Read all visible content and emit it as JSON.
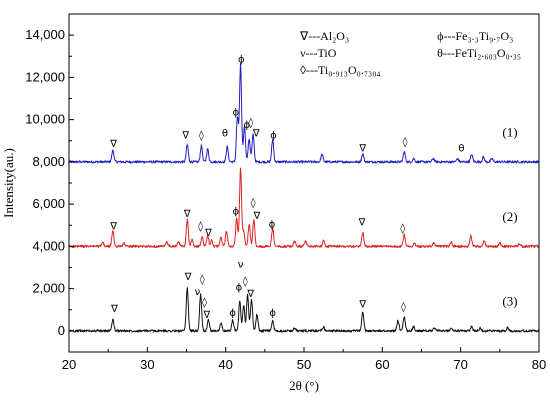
{
  "chart_data": {
    "type": "line",
    "xlabel": "2θ (°)",
    "ylabel": "Intensity(au.)",
    "xlim": [
      20,
      80
    ],
    "ylim": [
      -1000,
      15000
    ],
    "x_ticks": [
      20,
      30,
      40,
      50,
      60,
      70,
      80
    ],
    "y_ticks": [
      0,
      2000,
      4000,
      6000,
      8000,
      10000,
      12000,
      14000
    ],
    "y_tick_labels": [
      "0",
      "2,000",
      "4,000",
      "6,000",
      "8,000",
      "10,000",
      "12,000",
      "14,000"
    ],
    "legend": {
      "col1": [
        {
          "symbol": "∇",
          "text": "---Al₂O₃"
        },
        {
          "symbol": "ν",
          "text": "---TiO"
        },
        {
          "symbol": "◊",
          "text": "---Ti₀.₉₁₃O₀.₇₃₀₄"
        }
      ],
      "col2": [
        {
          "symbol": "ϕ",
          "text": "---Fe₃.₃Ti₉.₇O₃"
        },
        {
          "symbol": "θ",
          "text": "---FeTi₂.₆₀₃O₀.₃₅"
        }
      ]
    },
    "series": [
      {
        "name": "(1)",
        "color": "#1f1fbf",
        "baseline": 8000,
        "peaks": [
          [
            25.6,
            560
          ],
          [
            35.1,
            820
          ],
          [
            36.9,
            760
          ],
          [
            37.7,
            620
          ],
          [
            40.2,
            720
          ],
          [
            41.5,
            2100
          ],
          [
            41.9,
            4600
          ],
          [
            42.4,
            1700
          ],
          [
            43.0,
            1100
          ],
          [
            43.5,
            1300
          ],
          [
            46.0,
            1050
          ],
          [
            52.3,
            350
          ],
          [
            57.5,
            380
          ],
          [
            62.8,
            480
          ],
          [
            64.0,
            160
          ],
          [
            66.5,
            170
          ],
          [
            69.6,
            150
          ],
          [
            71.4,
            350
          ],
          [
            72.9,
            230
          ],
          [
            74.0,
            150
          ]
        ],
        "markers": [
          {
            "x": 25.7,
            "y": 8700,
            "sym": "∇"
          },
          {
            "x": 34.9,
            "y": 9100,
            "sym": "∇"
          },
          {
            "x": 36.9,
            "y": 9100,
            "sym": "◊"
          },
          {
            "x": 39.9,
            "y": 9200,
            "sym": "θ"
          },
          {
            "x": 41.3,
            "y": 10200,
            "sym": "ϕ"
          },
          {
            "x": 42.0,
            "y": 12700,
            "sym": "ϕ"
          },
          {
            "x": 42.7,
            "y": 9600,
            "sym": "ϕ"
          },
          {
            "x": 43.2,
            "y": 9700,
            "sym": "◊"
          },
          {
            "x": 43.9,
            "y": 9200,
            "sym": "∇"
          },
          {
            "x": 46.1,
            "y": 9100,
            "sym": "ϕ"
          },
          {
            "x": 57.5,
            "y": 8500,
            "sym": "∇"
          },
          {
            "x": 62.9,
            "y": 8800,
            "sym": "◊"
          },
          {
            "x": 70.1,
            "y": 8500,
            "sym": "θ"
          }
        ]
      },
      {
        "name": "(2)",
        "color": "#e02020",
        "baseline": 4000,
        "peaks": [
          [
            24.3,
            180
          ],
          [
            25.6,
            720
          ],
          [
            27.0,
            150
          ],
          [
            32.5,
            200
          ],
          [
            34.0,
            200
          ],
          [
            35.1,
            1250
          ],
          [
            35.7,
            300
          ],
          [
            37.0,
            450
          ],
          [
            37.7,
            550
          ],
          [
            38.2,
            280
          ],
          [
            39.4,
            420
          ],
          [
            40.1,
            750
          ],
          [
            41.4,
            1300
          ],
          [
            41.9,
            3700
          ],
          [
            42.3,
            700
          ],
          [
            43.0,
            1050
          ],
          [
            43.6,
            1300
          ],
          [
            46.0,
            850
          ],
          [
            48.8,
            250
          ],
          [
            50.2,
            230
          ],
          [
            52.5,
            280
          ],
          [
            57.5,
            650
          ],
          [
            62.8,
            550
          ],
          [
            64.1,
            160
          ],
          [
            66.6,
            160
          ],
          [
            68.8,
            200
          ],
          [
            71.3,
            500
          ],
          [
            73.0,
            250
          ],
          [
            75.0,
            170
          ],
          [
            77.5,
            120
          ]
        ],
        "markers": [
          {
            "x": 25.7,
            "y": 4800,
            "sym": "∇"
          },
          {
            "x": 35.1,
            "y": 5400,
            "sym": "∇"
          },
          {
            "x": 36.8,
            "y": 4800,
            "sym": "◊"
          },
          {
            "x": 37.8,
            "y": 4500,
            "sym": "∇"
          },
          {
            "x": 41.3,
            "y": 5500,
            "sym": "ϕ"
          },
          {
            "x": 43.5,
            "y": 5900,
            "sym": "◊"
          },
          {
            "x": 44.0,
            "y": 5300,
            "sym": "∇"
          },
          {
            "x": 45.9,
            "y": 4900,
            "sym": "ϕ"
          },
          {
            "x": 57.4,
            "y": 5000,
            "sym": "∇"
          },
          {
            "x": 62.6,
            "y": 4700,
            "sym": "◊"
          },
          {
            "x": 41.9,
            "y": 3000,
            "sym": "ν"
          }
        ]
      },
      {
        "name": "(3)",
        "color": "#111111",
        "baseline": 0,
        "peaks": [
          [
            25.6,
            550
          ],
          [
            35.1,
            2000
          ],
          [
            36.8,
            1700
          ],
          [
            37.8,
            500
          ],
          [
            39.4,
            400
          ],
          [
            40.9,
            500
          ],
          [
            41.8,
            1400
          ],
          [
            42.3,
            1200
          ],
          [
            42.8,
            1700
          ],
          [
            43.3,
            1500
          ],
          [
            44.0,
            800
          ],
          [
            46.0,
            450
          ],
          [
            48.8,
            150
          ],
          [
            52.5,
            180
          ],
          [
            57.5,
            900
          ],
          [
            62.0,
            500
          ],
          [
            62.8,
            700
          ],
          [
            64.0,
            200
          ],
          [
            66.6,
            150
          ],
          [
            68.8,
            130
          ],
          [
            71.4,
            200
          ],
          [
            72.5,
            160
          ],
          [
            76.0,
            150
          ]
        ],
        "markers": [
          {
            "x": 25.8,
            "y": 900,
            "sym": "∇"
          },
          {
            "x": 35.2,
            "y": 2400,
            "sym": "∇"
          },
          {
            "x": 37.0,
            "y": 2300,
            "sym": "◊"
          },
          {
            "x": 36.4,
            "y": 1700,
            "sym": "ν"
          },
          {
            "x": 37.3,
            "y": 1200,
            "sym": "◊"
          },
          {
            "x": 37.6,
            "y": 600,
            "sym": "∇"
          },
          {
            "x": 40.9,
            "y": 700,
            "sym": "ϕ"
          },
          {
            "x": 41.7,
            "y": 1900,
            "sym": "ϕ"
          },
          {
            "x": 42.5,
            "y": 2200,
            "sym": "◊"
          },
          {
            "x": 43.2,
            "y": 1600,
            "sym": "∇"
          },
          {
            "x": 46.0,
            "y": 700,
            "sym": "ϕ"
          },
          {
            "x": 57.5,
            "y": 1100,
            "sym": "∇"
          },
          {
            "x": 62.7,
            "y": 1000,
            "sym": "◊"
          }
        ]
      }
    ]
  }
}
